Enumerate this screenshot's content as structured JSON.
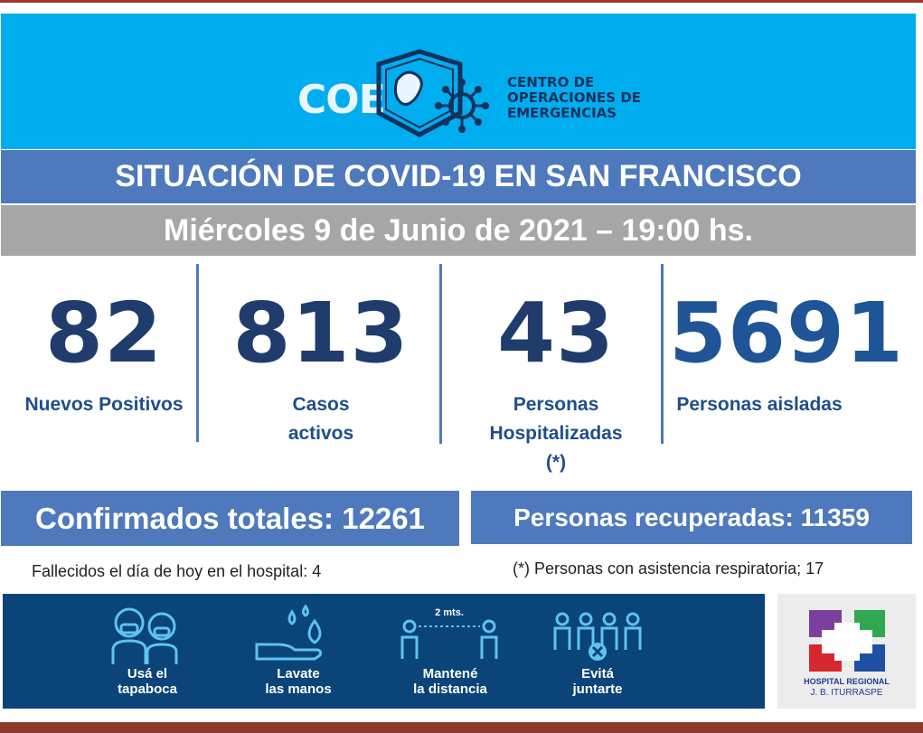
{
  "header": {
    "logo_text": "COE",
    "subtitle_lines": [
      "CENTRO DE",
      "OPERACIONES DE",
      "EMERGENCIAS"
    ]
  },
  "title": "SITUACIÓN DE COVID-19 EN SAN FRANCISCO",
  "date_line": "Miércoles 9 de Junio de 2021 – 19:00 hs.",
  "stats": [
    {
      "value": "82",
      "label_lines": [
        "Nuevos Positivos"
      ]
    },
    {
      "value": "813",
      "label_lines": [
        "Casos",
        "activos"
      ]
    },
    {
      "value": "43",
      "label_lines": [
        "Personas",
        "Hospitalizadas",
        "(*)"
      ]
    },
    {
      "value": "5691",
      "label_lines": [
        "Personas aisladas"
      ]
    }
  ],
  "totals": {
    "confirmed": "Confirmados totales: 12261",
    "recovered": "Personas recuperadas: 11359"
  },
  "notes": {
    "deaths": "Fallecidos el día de hoy en el hospital: 4",
    "respiratory": "(*) Personas con asistencia respiratoria; 17"
  },
  "tips": [
    {
      "line1": "Usá el",
      "line2": "tapaboca",
      "icon": "people-mask-icon"
    },
    {
      "line1": "Lavate",
      "line2": "las manos",
      "icon": "hand-wash-icon"
    },
    {
      "line1": "Mantené",
      "line2": "la distancia",
      "icon": "distance-icon"
    },
    {
      "line1": "Evitá",
      "line2": "juntarte",
      "icon": "no-gathering-icon"
    }
  ],
  "distance_label": "2 mts.",
  "hospital": {
    "name": "HOSPITAL REGIONAL",
    "subname": "J. B. ITURRASPE"
  },
  "colors": {
    "header_blue": "#00adef",
    "title_blue": "#4f79bd",
    "date_gray": "#a6a6a6",
    "number_navy": "#1f3c6d",
    "strip_navy": "#0a4478"
  }
}
